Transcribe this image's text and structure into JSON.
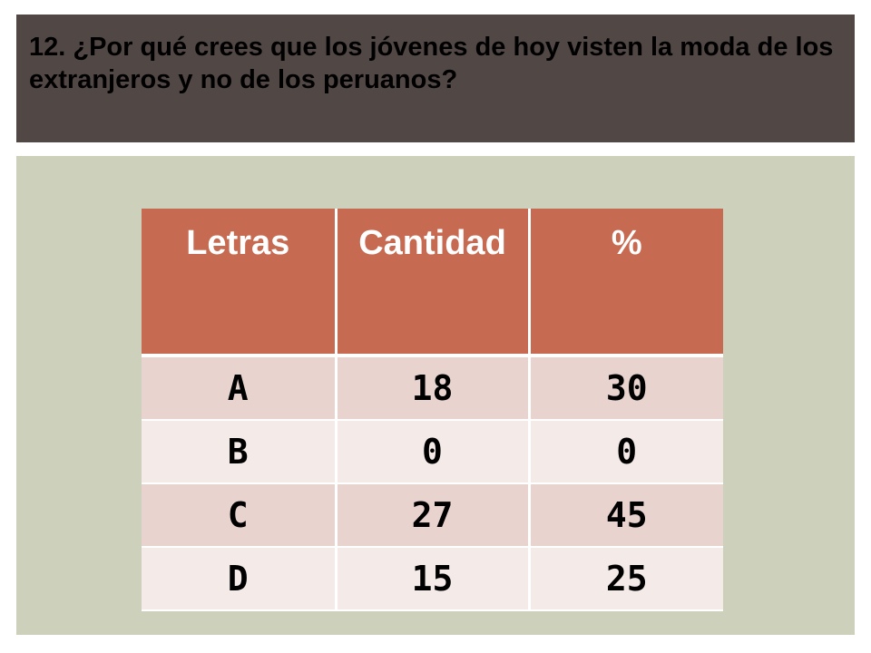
{
  "title": "12. ¿Por qué crees que los jóvenes de hoy visten la moda de los extranjeros  y no de los peruanos?",
  "table": {
    "headers": [
      "Letras",
      "Cantidad",
      "%"
    ],
    "rows": [
      [
        "A",
        "18",
        "30"
      ],
      [
        "B",
        "0",
        "0"
      ],
      [
        "C",
        "27",
        "45"
      ],
      [
        "D",
        "15",
        "25"
      ]
    ]
  },
  "colors": {
    "title_bar": "#514745",
    "panel": "#cdd1bb",
    "header_fill": "#c76a52",
    "row_odd": "#e9d3cf",
    "row_even": "#f4eae8"
  }
}
